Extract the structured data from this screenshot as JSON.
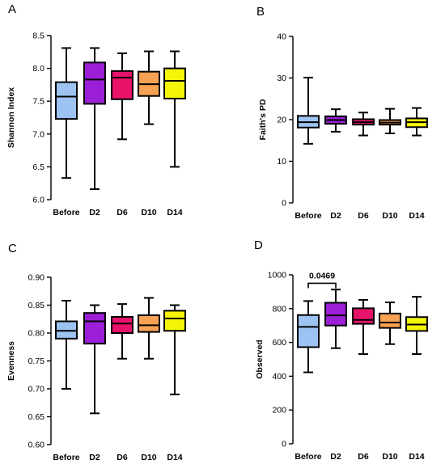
{
  "chart_data": [
    {
      "panel": "A",
      "type": "boxplot",
      "ylabel": "Shannon Index",
      "ylim": [
        6.0,
        8.5
      ],
      "yticks": [
        "6.0",
        "6.5",
        "7.0",
        "7.5",
        "8.0",
        "8.5"
      ],
      "categories": [
        "Before",
        "D2",
        "D6",
        "D10",
        "D14"
      ],
      "colors": [
        "#9DC3F2",
        "#9B1FD6",
        "#E8136B",
        "#F7A154",
        "#F5F50A"
      ],
      "boxes": [
        {
          "min": 6.33,
          "q1": 7.23,
          "median": 7.57,
          "q3": 7.79,
          "max": 8.31
        },
        {
          "min": 6.16,
          "q1": 7.46,
          "median": 7.83,
          "q3": 8.09,
          "max": 8.31
        },
        {
          "min": 6.92,
          "q1": 7.53,
          "median": 7.86,
          "q3": 7.96,
          "max": 8.23
        },
        {
          "min": 7.15,
          "q1": 7.58,
          "median": 7.76,
          "q3": 7.95,
          "max": 8.26
        },
        {
          "min": 6.5,
          "q1": 7.54,
          "median": 7.81,
          "q3": 8.0,
          "max": 8.26
        }
      ]
    },
    {
      "panel": "B",
      "type": "boxplot",
      "ylabel": "Faith's PD",
      "ylim": [
        0,
        40
      ],
      "yticks": [
        "0",
        "10",
        "20",
        "30",
        "40"
      ],
      "categories": [
        "Before",
        "D2",
        "D6",
        "D10",
        "D14"
      ],
      "colors": [
        "#9DC3F2",
        "#9B1FD6",
        "#E8136B",
        "#F7A154",
        "#F5F50A"
      ],
      "boxes": [
        {
          "min": 14.2,
          "q1": 18.1,
          "median": 19.4,
          "q3": 20.9,
          "max": 30.1
        },
        {
          "min": 17.1,
          "q1": 19.0,
          "median": 19.9,
          "q3": 20.8,
          "max": 22.5
        },
        {
          "min": 16.2,
          "q1": 18.8,
          "median": 19.4,
          "q3": 20.1,
          "max": 21.7
        },
        {
          "min": 16.7,
          "q1": 18.8,
          "median": 19.3,
          "q3": 19.9,
          "max": 22.6
        },
        {
          "min": 16.2,
          "q1": 18.2,
          "median": 19.4,
          "q3": 20.3,
          "max": 22.8
        }
      ]
    },
    {
      "panel": "C",
      "type": "boxplot",
      "ylabel": "Evenness",
      "ylim": [
        0.6,
        0.9
      ],
      "yticks": [
        "0.60",
        "0.65",
        "0.70",
        "0.75",
        "0.80",
        "0.85",
        "0.90"
      ],
      "categories": [
        "Before",
        "D2",
        "D6",
        "D10",
        "D14"
      ],
      "colors": [
        "#9DC3F2",
        "#9B1FD6",
        "#E8136B",
        "#F7A154",
        "#F5F50A"
      ],
      "boxes": [
        {
          "min": 0.7,
          "q1": 0.79,
          "median": 0.804,
          "q3": 0.821,
          "max": 0.858
        },
        {
          "min": 0.656,
          "q1": 0.781,
          "median": 0.821,
          "q3": 0.836,
          "max": 0.85
        },
        {
          "min": 0.754,
          "q1": 0.8,
          "median": 0.817,
          "q3": 0.829,
          "max": 0.852
        },
        {
          "min": 0.754,
          "q1": 0.802,
          "median": 0.814,
          "q3": 0.832,
          "max": 0.863
        },
        {
          "min": 0.69,
          "q1": 0.804,
          "median": 0.826,
          "q3": 0.84,
          "max": 0.85
        }
      ]
    },
    {
      "panel": "D",
      "type": "boxplot",
      "ylabel": "Observed",
      "ylim": [
        0,
        1000
      ],
      "yticks": [
        "0",
        "200",
        "400",
        "600",
        "800",
        "1000"
      ],
      "categories": [
        "Before",
        "D2",
        "D6",
        "D10",
        "D14"
      ],
      "colors": [
        "#9DC3F2",
        "#9B1FD6",
        "#E8136B",
        "#F7A154",
        "#F5F50A"
      ],
      "boxes": [
        {
          "min": 423,
          "q1": 572,
          "median": 692,
          "q3": 762,
          "max": 845
        },
        {
          "min": 566,
          "q1": 700,
          "median": 760,
          "q3": 835,
          "max": 913
        },
        {
          "min": 531,
          "q1": 710,
          "median": 733,
          "q3": 802,
          "max": 852
        },
        {
          "min": 590,
          "q1": 686,
          "median": 718,
          "q3": 771,
          "max": 837
        },
        {
          "min": 531,
          "q1": 668,
          "median": 706,
          "q3": 750,
          "max": 870
        }
      ],
      "annotation": {
        "from": "Before",
        "to": "D2",
        "text": "0.0469",
        "y": 950
      }
    }
  ]
}
